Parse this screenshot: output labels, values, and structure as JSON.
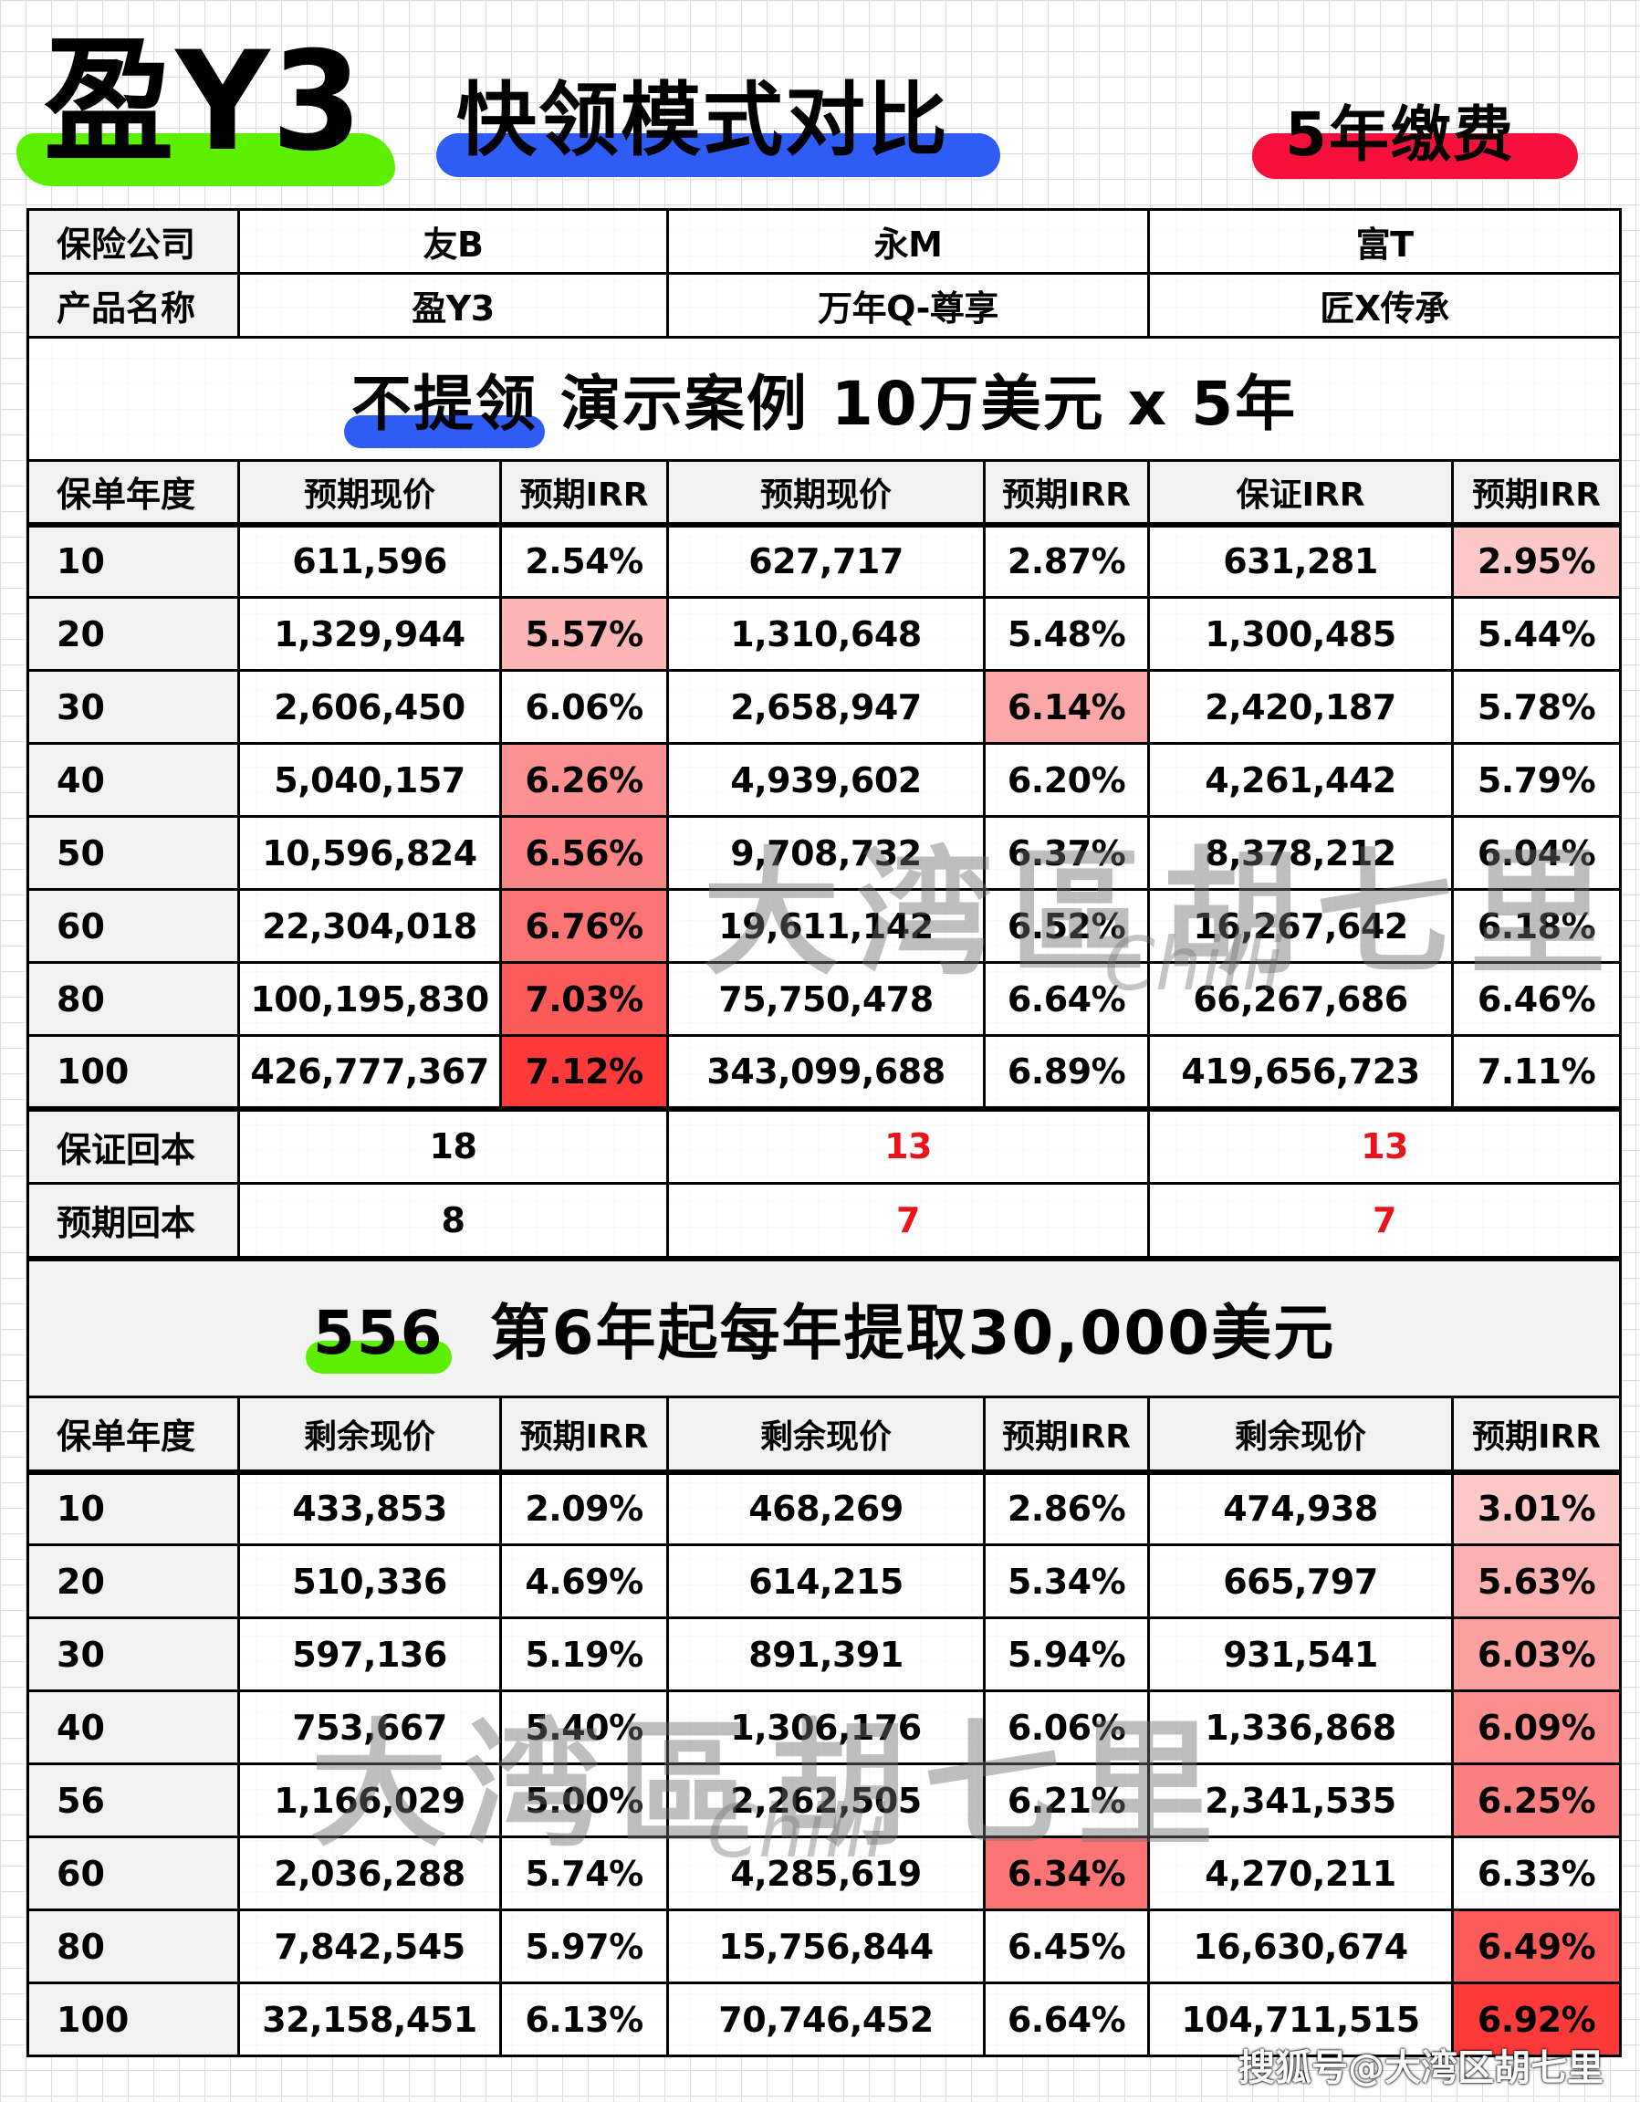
{
  "header": {
    "main_title": "盈Y3",
    "subtitle": "快领模式对比",
    "tag": "5年缴费",
    "colors": {
      "main_brush": "#5cf000",
      "subtitle_brush": "#2f5cf5",
      "tag_brush": "#f5103c"
    }
  },
  "info": {
    "company_label": "保险公司",
    "product_label": "产品名称",
    "companies": [
      "友B",
      "永M",
      "富T"
    ],
    "products": [
      "盈Y3",
      "万年Q-尊享",
      "匠X传承"
    ]
  },
  "section1": {
    "banner_highlight": "不提领",
    "banner_rest": "演示案例 10万美元 x 5年",
    "headers": [
      "保单年度",
      "预期现价",
      "预期IRR",
      "预期现价",
      "预期IRR",
      "保证IRR",
      "预期IRR"
    ],
    "rows": [
      {
        "year": "10",
        "c1": "611,596",
        "c2": "2.54%",
        "c3": "627,717",
        "c4": "2.87%",
        "c5": "631,281",
        "c6": "2.95%"
      },
      {
        "year": "20",
        "c1": "1,329,944",
        "c2": "5.57%",
        "c3": "1,310,648",
        "c4": "5.48%",
        "c5": "1,300,485",
        "c6": "5.44%"
      },
      {
        "year": "30",
        "c1": "2,606,450",
        "c2": "6.06%",
        "c3": "2,658,947",
        "c4": "6.14%",
        "c5": "2,420,187",
        "c6": "5.78%"
      },
      {
        "year": "40",
        "c1": "5,040,157",
        "c2": "6.26%",
        "c3": "4,939,602",
        "c4": "6.20%",
        "c5": "4,261,442",
        "c6": "5.79%"
      },
      {
        "year": "50",
        "c1": "10,596,824",
        "c2": "6.56%",
        "c3": "9,708,732",
        "c4": "6.37%",
        "c5": "8,378,212",
        "c6": "6.04%"
      },
      {
        "year": "60",
        "c1": "22,304,018",
        "c2": "6.76%",
        "c3": "19,611,142",
        "c4": "6.52%",
        "c5": "16,267,642",
        "c6": "6.18%"
      },
      {
        "year": "80",
        "c1": "100,195,830",
        "c2": "7.03%",
        "c3": "75,750,478",
        "c4": "6.64%",
        "c5": "66,267,686",
        "c6": "6.46%"
      },
      {
        "year": "100",
        "c1": "426,777,367",
        "c2": "7.12%",
        "c3": "343,099,688",
        "c4": "6.89%",
        "c5": "419,656,723",
        "c6": "7.11%"
      }
    ],
    "breakeven": {
      "guaranteed_label": "保证回本",
      "guaranteed": [
        "18",
        "13",
        "13"
      ],
      "expected_label": "预期回本",
      "expected": [
        "8",
        "7",
        "7"
      ]
    },
    "highlight_colors": {
      "r0c6": "#fdc8c8",
      "r1c2": "#fdb5b5",
      "r2c4": "#fda8a8",
      "r3c2": "#fd9090",
      "r4c2": "#fd8484",
      "r5c2": "#fd7474",
      "r6c2": "#fd5a5a",
      "r7c2": "#fd3a3a"
    }
  },
  "section2": {
    "banner_highlight": "556",
    "banner_rest": "第6年起每年提取30,000美元",
    "headers": [
      "保单年度",
      "剩余现价",
      "预期IRR",
      "剩余现价",
      "预期IRR",
      "剩余现价",
      "预期IRR"
    ],
    "rows": [
      {
        "year": "10",
        "c1": "433,853",
        "c2": "2.09%",
        "c3": "468,269",
        "c4": "2.86%",
        "c5": "474,938",
        "c6": "3.01%"
      },
      {
        "year": "20",
        "c1": "510,336",
        "c2": "4.69%",
        "c3": "614,215",
        "c4": "5.34%",
        "c5": "665,797",
        "c6": "5.63%"
      },
      {
        "year": "30",
        "c1": "597,136",
        "c2": "5.19%",
        "c3": "891,391",
        "c4": "5.94%",
        "c5": "931,541",
        "c6": "6.03%"
      },
      {
        "year": "40",
        "c1": "753,667",
        "c2": "5.40%",
        "c3": "1,306,176",
        "c4": "6.06%",
        "c5": "1,336,868",
        "c6": "6.09%"
      },
      {
        "year": "56",
        "c1": "1,166,029",
        "c2": "5.00%",
        "c3": "2,262,505",
        "c4": "6.21%",
        "c5": "2,341,535",
        "c6": "6.25%"
      },
      {
        "year": "60",
        "c1": "2,036,288",
        "c2": "5.74%",
        "c3": "4,285,619",
        "c4": "6.34%",
        "c5": "4,270,211",
        "c6": "6.33%"
      },
      {
        "year": "80",
        "c1": "7,842,545",
        "c2": "5.97%",
        "c3": "15,756,844",
        "c4": "6.45%",
        "c5": "16,630,674",
        "c6": "6.49%"
      },
      {
        "year": "100",
        "c1": "32,158,451",
        "c2": "6.13%",
        "c3": "70,746,452",
        "c4": "6.64%",
        "c5": "104,711,515",
        "c6": "6.92%"
      }
    ],
    "highlight_colors": {
      "r0c6": "#fdc8c8",
      "r1c6": "#fdb0b0",
      "r2c6": "#fda0a0",
      "r3c6": "#fd8c8c",
      "r4c6": "#fd8080",
      "r5c4": "#fd7474",
      "r6c6": "#fd5a5a",
      "r7c6": "#fd3a3a"
    }
  },
  "watermarks": {
    "brand_cn": "大湾區胡七里",
    "brand_en": "Chilli",
    "footer": "搜狐号@大湾区胡七里"
  }
}
